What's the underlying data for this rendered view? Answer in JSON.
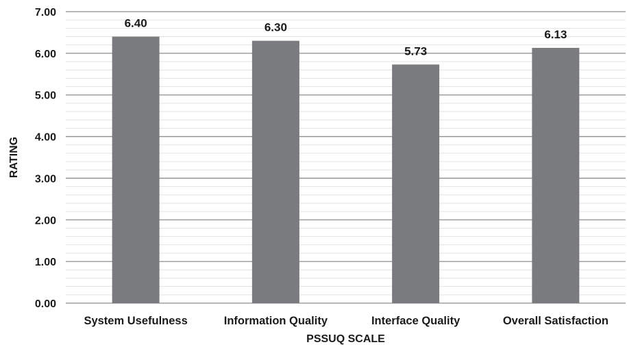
{
  "chart_data": {
    "type": "bar",
    "title": "",
    "xlabel": "PSSUQ SCALE",
    "ylabel": "RATING",
    "categories": [
      "System Usefulness",
      "Information Quality",
      "Interface Quality",
      "Overall Satisfaction"
    ],
    "values": [
      6.4,
      6.3,
      5.73,
      6.13
    ],
    "data_labels": [
      "6.40",
      "6.30",
      "5.73",
      "6.13"
    ],
    "ylim": [
      0,
      7
    ],
    "yticks": [
      0,
      1,
      2,
      3,
      4,
      5,
      6,
      7
    ],
    "ytick_labels": [
      "0.00",
      "1.00",
      "2.00",
      "3.00",
      "4.00",
      "5.00",
      "6.00",
      "7.00"
    ],
    "minor_step": 0.2,
    "grid": true,
    "legend": "none",
    "colors": {
      "bar": "#7a7b7e",
      "major_grid": "#8c8c8c",
      "minor_grid": "#e2e2e2",
      "text": "#1a1a1a"
    }
  }
}
